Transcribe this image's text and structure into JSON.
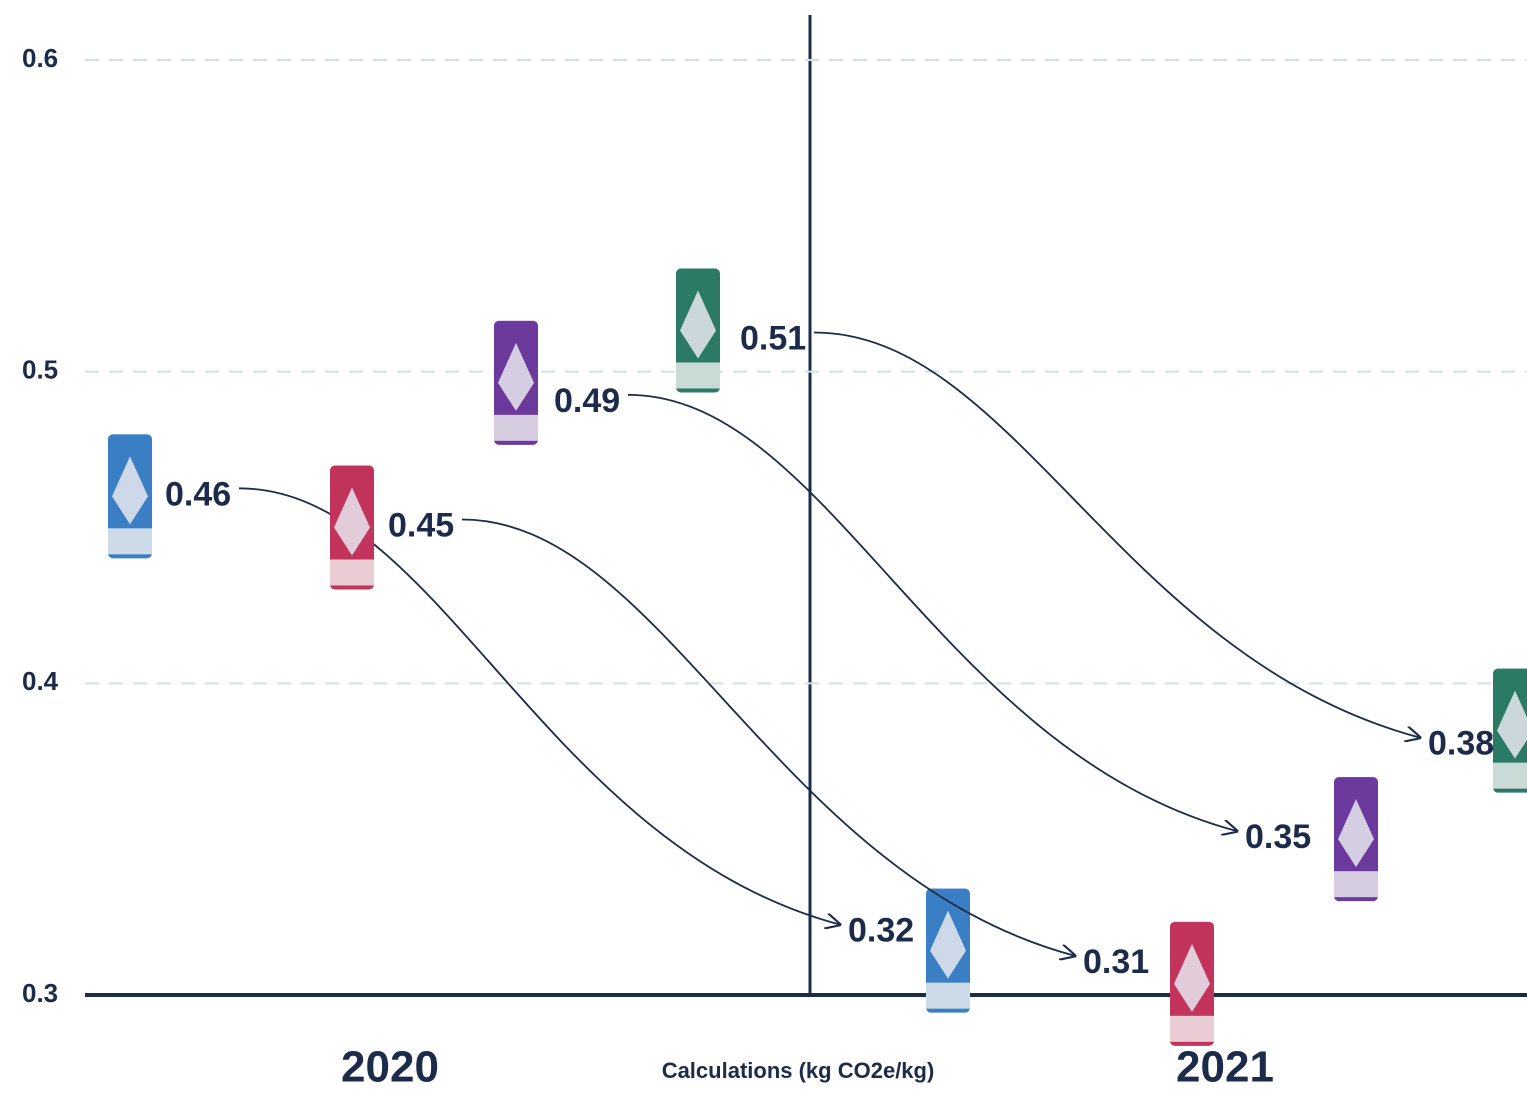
{
  "chart_data": {
    "type": "dot",
    "xlabel": "Calculations (kg CO2e/kg)",
    "categories": [
      "2020",
      "2021"
    ],
    "series": [
      {
        "color": "#3a7fc4",
        "values": [
          0.46,
          0.32
        ]
      },
      {
        "color": "#c2345c",
        "values": [
          0.45,
          0.31
        ]
      },
      {
        "color": "#6b3a9c",
        "values": [
          0.49,
          0.35
        ]
      },
      {
        "color": "#2b7a66",
        "values": [
          0.51,
          0.38
        ]
      }
    ],
    "ylim": [
      0.3,
      0.6
    ],
    "yticks": [
      0.3,
      0.4,
      0.5,
      0.6
    ],
    "grid": true
  }
}
